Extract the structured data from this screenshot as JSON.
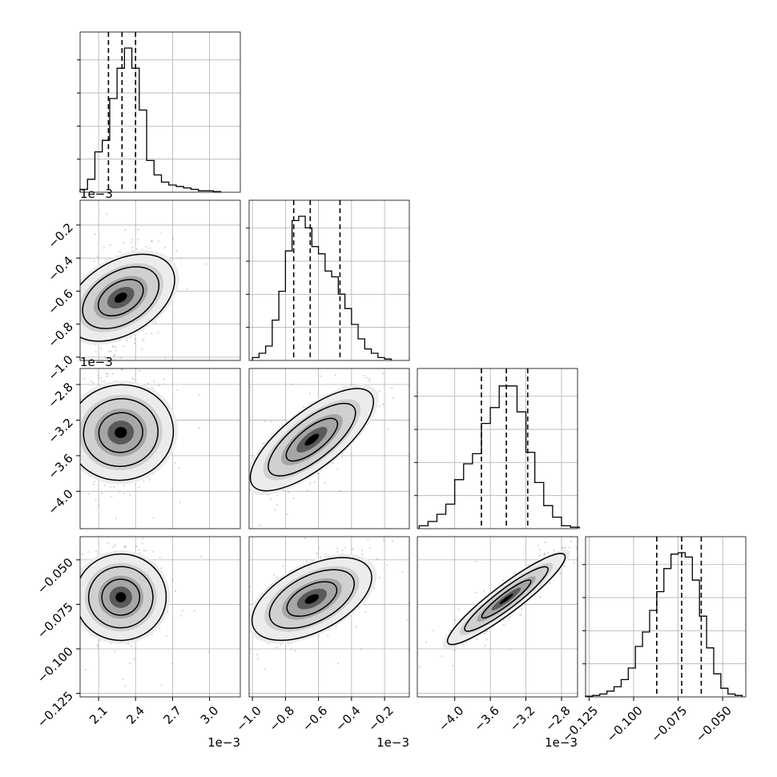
{
  "chart_data": {
    "type": "scatter",
    "plot_kind": "corner plot with 1D histograms and 2D density contours",
    "grid": true,
    "quantile_lines": "dashed",
    "parameters": [
      {
        "range": [
          0.00195,
          0.00325
        ],
        "ticks": [
          2.1,
          2.4,
          2.7,
          3.0
        ],
        "tick_labels": [
          "2.1",
          "2.4",
          "2.7",
          "3.0"
        ],
        "offset_text": "1e−3",
        "quantiles": [
          0.00218,
          0.00229,
          0.0024
        ],
        "hist_centers": [
          0.00198,
          0.00204,
          0.0021,
          0.00216,
          0.00222,
          0.00228,
          0.00234,
          0.0024,
          0.00246,
          0.00252,
          0.00258,
          0.00264,
          0.0027,
          0.00276,
          0.00282,
          0.00288,
          0.00294,
          0.003,
          0.00306
        ],
        "hist_values": [
          0.02,
          0.09,
          0.28,
          0.36,
          0.65,
          0.86,
          1.0,
          0.86,
          0.57,
          0.22,
          0.12,
          0.07,
          0.05,
          0.04,
          0.03,
          0.02,
          0.01,
          0.01,
          0.005
        ]
      },
      {
        "range": [
          -0.00102,
          -5e-05
        ],
        "ticks": [
          -1.0,
          -0.8,
          -0.6,
          -0.4,
          -0.2
        ],
        "tick_labels": [
          "−1.0",
          "−0.8",
          "−0.6",
          "−0.4",
          "−0.2"
        ],
        "offset_text": "1e−3",
        "quantiles": [
          -0.00075,
          -0.00065,
          -0.00047
        ],
        "hist_centers": [
          -0.00098,
          -0.00094,
          -0.0009,
          -0.00086,
          -0.00082,
          -0.00078,
          -0.00074,
          -0.0007,
          -0.00066,
          -0.00062,
          -0.00058,
          -0.00054,
          -0.0005,
          -0.00046,
          -0.00042,
          -0.00038,
          -0.00034,
          -0.0003,
          -0.00026,
          -0.00022,
          -0.00018
        ],
        "hist_values": [
          0.02,
          0.05,
          0.1,
          0.28,
          0.48,
          0.76,
          0.97,
          1.0,
          0.92,
          0.79,
          0.74,
          0.62,
          0.58,
          0.46,
          0.36,
          0.25,
          0.15,
          0.08,
          0.05,
          0.02,
          0.01
        ]
      },
      {
        "range": [
          -0.00442,
          -0.00262
        ],
        "ticks": [
          -4.0,
          -3.6,
          -3.2,
          -2.8
        ],
        "tick_labels": [
          "−4.0",
          "−3.6",
          "−3.2",
          "−2.8"
        ],
        "offset_text": "1e−3",
        "quantiles": [
          -0.0037,
          -0.00342,
          -0.00318
        ],
        "hist_centers": [
          -0.00435,
          -0.00425,
          -0.00415,
          -0.00405,
          -0.00395,
          -0.00385,
          -0.00375,
          -0.00365,
          -0.00355,
          -0.00345,
          -0.00335,
          -0.00325,
          -0.00315,
          -0.00305,
          -0.00295,
          -0.00285,
          -0.00275,
          -0.00265
        ],
        "hist_values": [
          0.02,
          0.05,
          0.1,
          0.17,
          0.34,
          0.45,
          0.52,
          0.73,
          0.84,
          0.99,
          0.99,
          0.81,
          0.53,
          0.32,
          0.16,
          0.08,
          0.02,
          0.01
        ],
        "hist_bin_count": 18
      },
      {
        "range": [
          -0.127,
          -0.037
        ],
        "ticks": [
          -0.125,
          -0.1,
          -0.075,
          -0.05
        ],
        "tick_labels": [
          "−0.125",
          "−0.100",
          "−0.075",
          "−0.050"
        ],
        "offset_text": "",
        "quantiles": [
          -0.087,
          -0.073,
          -0.062
        ],
        "hist_centers": [
          -0.125,
          -0.121,
          -0.117,
          -0.113,
          -0.109,
          -0.105,
          -0.101,
          -0.097,
          -0.093,
          -0.089,
          -0.085,
          -0.081,
          -0.077,
          -0.073,
          -0.069,
          -0.065,
          -0.061,
          -0.057,
          -0.053,
          -0.049,
          -0.045,
          -0.041
        ],
        "hist_values": [
          0.005,
          0.01,
          0.02,
          0.04,
          0.07,
          0.12,
          0.2,
          0.35,
          0.45,
          0.6,
          0.73,
          0.89,
          0.99,
          1.0,
          0.97,
          0.81,
          0.56,
          0.34,
          0.16,
          0.06,
          0.02,
          0.01
        ]
      }
    ],
    "pairs": [
      {
        "row": 1,
        "col": 0,
        "mean": [
          0.00228,
          -0.00064
        ],
        "sd": [
          0.00014,
          0.00014
        ],
        "corr": 0.45
      },
      {
        "row": 2,
        "col": 0,
        "mean": [
          0.00228,
          -0.00334
        ],
        "sd": [
          0.00014,
          0.00027
        ],
        "corr": 0.1
      },
      {
        "row": 2,
        "col": 1,
        "mean": [
          -0.00064,
          -0.00342
        ],
        "sd": [
          0.00014,
          0.00027
        ],
        "corr": 0.75
      },
      {
        "row": 3,
        "col": 0,
        "mean": [
          0.00228,
          -0.071
        ],
        "sd": [
          0.00014,
          0.011
        ],
        "corr": 0.05
      },
      {
        "row": 3,
        "col": 1,
        "mean": [
          -0.00064,
          -0.072
        ],
        "sd": [
          0.00014,
          0.011
        ],
        "corr": 0.6
      },
      {
        "row": 3,
        "col": 2,
        "mean": [
          -0.00342,
          -0.072
        ],
        "sd": [
          0.00027,
          0.011
        ],
        "corr": 0.93
      }
    ]
  }
}
